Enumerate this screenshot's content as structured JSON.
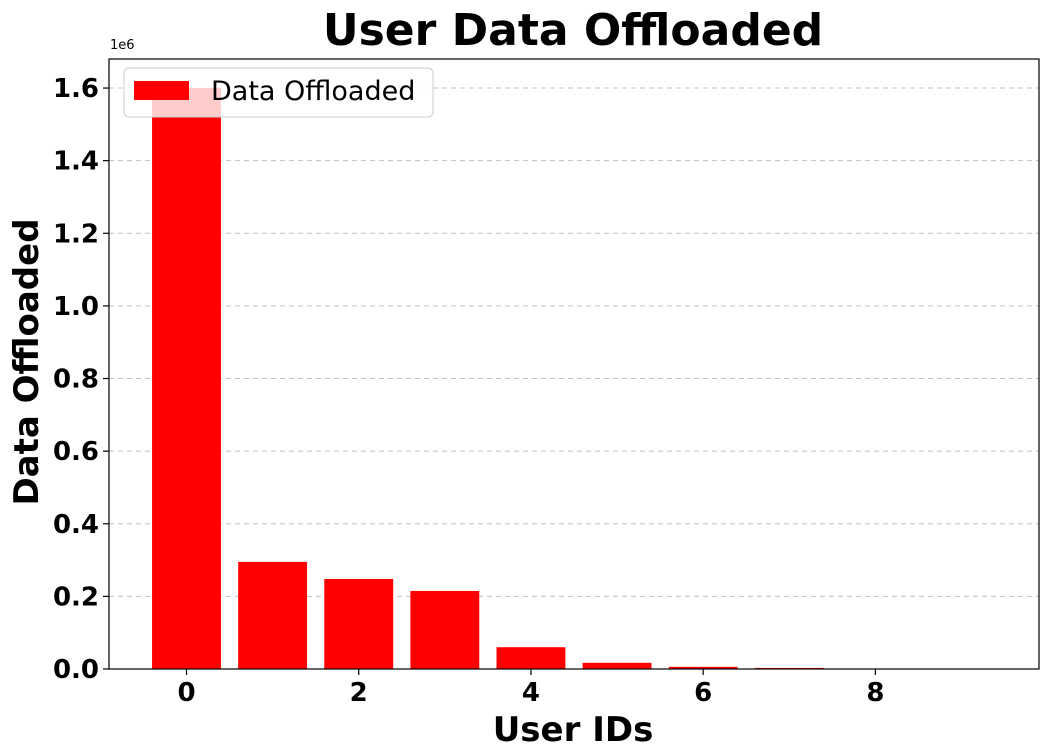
{
  "chart_data": {
    "type": "bar",
    "title": "User Data Offloaded",
    "xlabel": "User IDs",
    "ylabel": "Data Offloaded",
    "y_offset_label": "1e6",
    "x": [
      0,
      1,
      2,
      3,
      4,
      5,
      6,
      7,
      8,
      9
    ],
    "series": [
      {
        "name": "Data Offloaded",
        "color": "#ff0000",
        "values": [
          1600000,
          295000,
          248000,
          215000,
          60000,
          17000,
          6000,
          3000,
          500,
          200
        ]
      }
    ],
    "xlim": [
      -0.9,
      9.9
    ],
    "ylim": [
      0,
      1680000
    ],
    "xticks": [
      0,
      2,
      4,
      6,
      8
    ],
    "xtick_labels": [
      "0",
      "2",
      "4",
      "6",
      "8"
    ],
    "yticks": [
      0,
      200000,
      400000,
      600000,
      800000,
      1000000,
      1200000,
      1400000,
      1600000
    ],
    "ytick_labels": [
      "0.0",
      "0.2",
      "0.4",
      "0.6",
      "0.8",
      "1.0",
      "1.2",
      "1.4",
      "1.6"
    ],
    "grid": "y-dashed",
    "legend_position": "top-left",
    "bar_width": 0.8
  }
}
